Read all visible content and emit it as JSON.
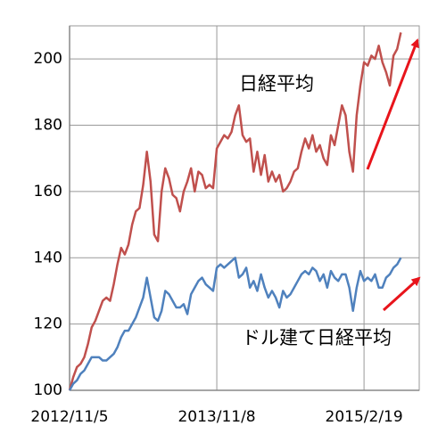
{
  "chart_data": {
    "type": "line",
    "categories": [
      "2012/11/5",
      null,
      null,
      null,
      null,
      null,
      null,
      null,
      null,
      null,
      null,
      null,
      null,
      null,
      null,
      null,
      null,
      null,
      null,
      null,
      null,
      null,
      null,
      null,
      null,
      null,
      null,
      null,
      null,
      null,
      null,
      null,
      null,
      null,
      null,
      null,
      null,
      null,
      null,
      null,
      "2013/11/8",
      null,
      null,
      null,
      null,
      null,
      null,
      null,
      null,
      null,
      null,
      null,
      null,
      null,
      null,
      null,
      null,
      null,
      null,
      null,
      null,
      null,
      null,
      null,
      null,
      null,
      null,
      null,
      null,
      null,
      null,
      null,
      null,
      null,
      null,
      null,
      null,
      null,
      null,
      null,
      "2015/2/19",
      null,
      null,
      null,
      null,
      null,
      null,
      null,
      null,
      null,
      null
    ],
    "series": [
      {
        "color": "#c0504d",
        "values": [
          100,
          104,
          107,
          108,
          110,
          114,
          119,
          121,
          124,
          127,
          128,
          127,
          132,
          138,
          143,
          141,
          144,
          150,
          154,
          155,
          162,
          172,
          163,
          147,
          145,
          160,
          167,
          164,
          159,
          158,
          154,
          160,
          163,
          167,
          160,
          166,
          165,
          161,
          162,
          161,
          173,
          175,
          177,
          176,
          178,
          183,
          186,
          177,
          175,
          176,
          166,
          172,
          165,
          171,
          163,
          166,
          163,
          165,
          160,
          161,
          163,
          166,
          167,
          172,
          176,
          173,
          177,
          172,
          174,
          170,
          168,
          177,
          174,
          180,
          186,
          183,
          172,
          166,
          183,
          192,
          199,
          198,
          201,
          200,
          204,
          199,
          196,
          192,
          201,
          203,
          208
        ]
      },
      {
        "color": "#4f81bd",
        "values": [
          100,
          102,
          103,
          105,
          106,
          108,
          110,
          110,
          110,
          109,
          109,
          110,
          111,
          113,
          116,
          118,
          118,
          120,
          122,
          125,
          128,
          134,
          128,
          122,
          121,
          124,
          130,
          129,
          127,
          125,
          125,
          126,
          123,
          129,
          131,
          133,
          134,
          132,
          131,
          130,
          137,
          138,
          137,
          138,
          139,
          140,
          134,
          135,
          137,
          131,
          133,
          130,
          135,
          131,
          128,
          130,
          128,
          125,
          130,
          128,
          129,
          131,
          133,
          135,
          136,
          135,
          137,
          136,
          133,
          135,
          131,
          136,
          134,
          133,
          135,
          135,
          131,
          124,
          131,
          136,
          133,
          134,
          133,
          135,
          131,
          131,
          134,
          135,
          137,
          138,
          140
        ]
      }
    ],
    "annotations": [
      "日経平均",
      "ドル建て日経平均"
    ],
    "ylim": [
      100,
      210
    ],
    "yticks": [
      100,
      120,
      140,
      160,
      180,
      200
    ],
    "grid": true
  }
}
